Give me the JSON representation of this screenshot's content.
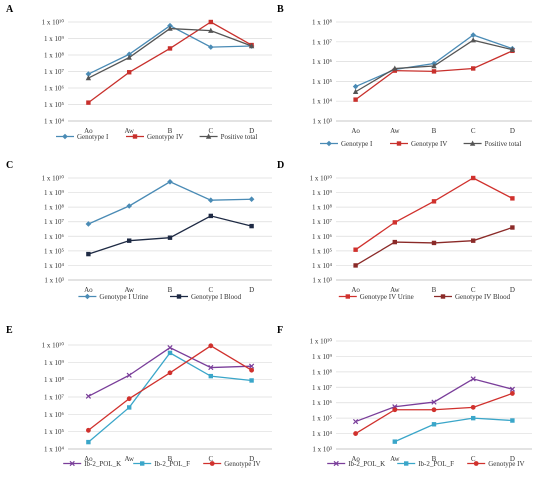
{
  "chart_data": [
    {
      "panel": "A",
      "type": "line",
      "scale": "log",
      "categories": [
        "Ao",
        "Aw",
        "B",
        "C",
        "D"
      ],
      "y_ticks": [
        "1 x 10⁴",
        "1 x 10⁵",
        "1 x 10⁶",
        "1 x 10⁷",
        "1 x 10⁸",
        "1 x 10⁹",
        "1 x 10¹⁰"
      ],
      "ylim": [
        10000.0,
        10000000000.0
      ],
      "grid": true,
      "legend": "bottom",
      "series": [
        {
          "name": "Genotype I",
          "color": "#4a8bb5",
          "marker": "diamond",
          "values": [
            7000000.0,
            110000000.0,
            6000000000.0,
            300000000.0,
            350000000.0
          ]
        },
        {
          "name": "Genotype IV",
          "color": "#c8302c",
          "marker": "square",
          "values": [
            130000.0,
            9000000.0,
            250000000.0,
            10000000000.0,
            400000000.0
          ]
        },
        {
          "name": "Positive total",
          "color": "#555555",
          "marker": "triangle",
          "values": [
            4000000.0,
            70000000.0,
            4000000000.0,
            3000000000.0,
            350000000.0
          ]
        }
      ]
    },
    {
      "panel": "B",
      "type": "line",
      "scale": "log",
      "categories": [
        "Ao",
        "Aw",
        "B",
        "C",
        "D"
      ],
      "y_ticks": [
        "1 x 10³",
        "1 x 10⁴",
        "1 x 10⁵",
        "1 x 10⁶",
        "1 x 10⁷",
        "1 x 10⁸"
      ],
      "ylim": [
        1000.0,
        100000000.0
      ],
      "grid": true,
      "legend": "bottom",
      "series": [
        {
          "name": "Genotype I",
          "color": "#4a8bb5",
          "marker": "diamond",
          "values": [
            55000.0,
            400000.0,
            800000.0,
            22000000.0,
            4500000.0
          ]
        },
        {
          "name": "Genotype IV",
          "color": "#c8302c",
          "marker": "square",
          "values": [
            12000.0,
            350000.0,
            320000.0,
            450000.0,
            3500000.0
          ]
        },
        {
          "name": "Positive total",
          "color": "#555555",
          "marker": "triangle",
          "values": [
            30000.0,
            450000.0,
            600000.0,
            12000000.0,
            4000000.0
          ]
        }
      ]
    },
    {
      "panel": "C",
      "type": "line",
      "scale": "log",
      "categories": [
        "Ao",
        "Aw",
        "B",
        "C",
        "D"
      ],
      "y_ticks": [
        "1 x 10³",
        "1 x 10⁴",
        "1 x 10⁵",
        "1 x 10⁶",
        "1 x 10⁷",
        "1 x 10⁸",
        "1 x 10⁹",
        "1 x 10¹⁰"
      ],
      "ylim": [
        1000.0,
        10000000000.0
      ],
      "grid": true,
      "legend": "bottom",
      "series": [
        {
          "name": "Genotype I Urine",
          "color": "#4a8bb5",
          "marker": "diamond",
          "values": [
            7000000.0,
            120000000.0,
            5500000000.0,
            300000000.0,
            350000000.0
          ]
        },
        {
          "name": "Genotype I Blood",
          "color": "#1e2a44",
          "marker": "square",
          "values": [
            60000.0,
            500000.0,
            800000.0,
            25000000.0,
            5000000.0
          ]
        }
      ]
    },
    {
      "panel": "D",
      "type": "line",
      "scale": "log",
      "categories": [
        "Ao",
        "Aw",
        "B",
        "C",
        "D"
      ],
      "y_ticks": [
        "1 x 10³",
        "1 x 10⁴",
        "1 x 10⁵",
        "1 x 10⁶",
        "1 x 10⁷",
        "1 x 10⁸",
        "1 x 10⁹",
        "1 x 10¹⁰"
      ],
      "ylim": [
        1000.0,
        10000000000.0
      ],
      "grid": true,
      "legend": "bottom",
      "series": [
        {
          "name": "Genotype IV Urine",
          "color": "#d0312d",
          "marker": "square",
          "values": [
            120000.0,
            9000000.0,
            250000000.0,
            10000000000.0,
            400000000.0
          ]
        },
        {
          "name": "Genotype IV Blood",
          "color": "#8b2a28",
          "marker": "square",
          "values": [
            10000.0,
            400000.0,
            350000.0,
            500000.0,
            4000000.0
          ]
        }
      ]
    },
    {
      "panel": "E",
      "type": "line",
      "scale": "log",
      "categories": [
        "Ao",
        "Aw",
        "B",
        "C",
        "D"
      ],
      "y_ticks": [
        "1 x 10⁴",
        "1 x 10⁵",
        "1 x 10⁶",
        "1 x 10⁷",
        "1 x 10⁸",
        "1 x 10⁹",
        "1 x 10¹⁰"
      ],
      "ylim": [
        10000.0,
        10000000000.0
      ],
      "grid": true,
      "legend": "bottom",
      "series": [
        {
          "name": "Ib-2_POL_K",
          "color": "#7a3e9a",
          "marker": "x",
          "values": [
            11000000.0,
            180000000.0,
            7000000000.0,
            500000000.0,
            600000000.0
          ]
        },
        {
          "name": "Ib-2_POL_F",
          "color": "#3aa6c9",
          "marker": "square",
          "values": [
            25000.0,
            2500000.0,
            3500000000.0,
            160000000.0,
            90000000.0
          ]
        },
        {
          "name": "Genotype IV",
          "color": "#d0312d",
          "marker": "circle",
          "values": [
            120000.0,
            8000000.0,
            250000000.0,
            9000000000.0,
            350000000.0
          ]
        }
      ]
    },
    {
      "panel": "F",
      "type": "line",
      "scale": "log",
      "categories": [
        "Ao",
        "Aw",
        "B",
        "C",
        "D"
      ],
      "y_ticks": [
        "1 x 10³",
        "1 x 10⁴",
        "1 x 10⁵",
        "1 x 10⁶",
        "1 x 10⁷",
        "1 x 10⁸",
        "1 x 10⁹",
        "1 x 10¹⁰"
      ],
      "ylim": [
        1000.0,
        10000000000.0
      ],
      "grid": true,
      "legend": "bottom",
      "series": [
        {
          "name": "Ib-2_POL_K",
          "color": "#7a3e9a",
          "marker": "x",
          "values": [
            60000.0,
            550000.0,
            1100000.0,
            35000000.0,
            7500000.0
          ]
        },
        {
          "name": "Ib-2_POL_F",
          "color": "#3aa6c9",
          "marker": "square",
          "values": [
            null,
            3000.0,
            40000.0,
            100000.0,
            70000.0
          ]
        },
        {
          "name": "Genotype IV",
          "color": "#d0312d",
          "marker": "circle",
          "values": [
            10000.0,
            350000.0,
            350000.0,
            500000.0,
            4000000.0
          ]
        }
      ]
    }
  ]
}
